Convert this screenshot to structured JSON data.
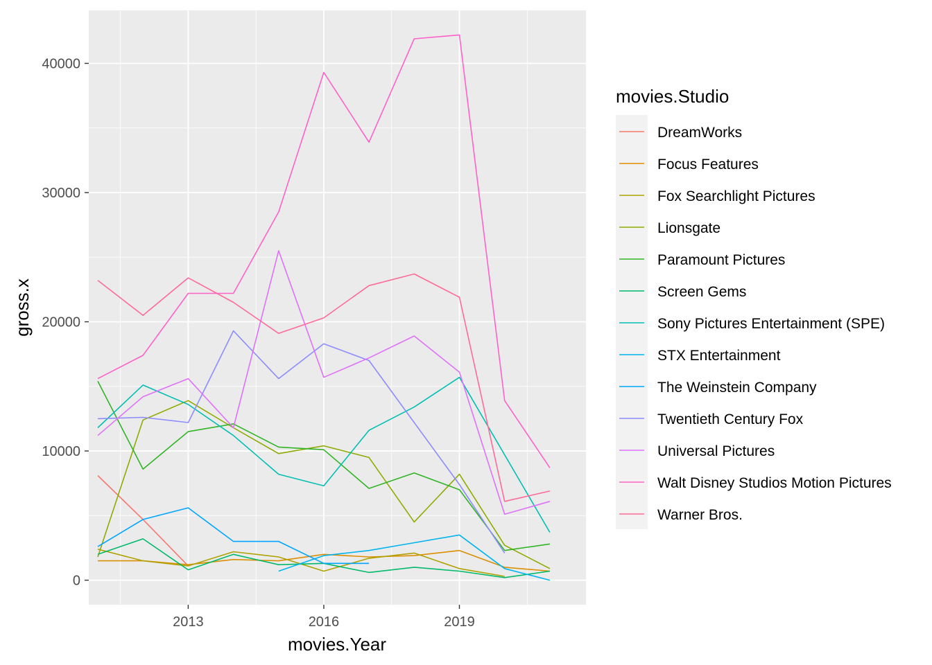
{
  "chart_data": {
    "type": "line",
    "xlabel": "movies.Year",
    "ylabel": "gross.x",
    "xlim": [
      2010.8,
      2021.8
    ],
    "ylim": [
      -1900,
      44100
    ],
    "x_ticks": [
      2013,
      2016,
      2019
    ],
    "x_tick_labels": [
      "2013",
      "2016",
      "2019"
    ],
    "y_ticks": [
      0,
      10000,
      20000,
      30000,
      40000
    ],
    "y_tick_labels": [
      "0",
      "10000",
      "20000",
      "30000",
      "40000"
    ],
    "grid": true,
    "legend": {
      "title": "movies.Studio",
      "position": "right"
    },
    "series": [
      {
        "name": "DreamWorks",
        "color": "#F8766D",
        "points": [
          [
            2011,
            8100
          ],
          [
            2012,
            4700
          ],
          [
            2013,
            1100
          ]
        ]
      },
      {
        "name": "Focus Features",
        "color": "#DB8E00",
        "points": [
          [
            2011,
            1500
          ],
          [
            2012,
            1500
          ],
          [
            2013,
            1200
          ],
          [
            2014,
            1600
          ],
          [
            2015,
            1500
          ],
          [
            2016,
            2000
          ],
          [
            2017,
            1800
          ],
          [
            2018,
            1900
          ],
          [
            2019,
            2300
          ],
          [
            2020,
            1000
          ],
          [
            2021,
            700
          ]
        ]
      },
      {
        "name": "Fox Searchlight Pictures",
        "color": "#AEA200",
        "points": [
          [
            2011,
            2400
          ],
          [
            2012,
            1500
          ],
          [
            2013,
            1100
          ],
          [
            2014,
            2200
          ],
          [
            2015,
            1800
          ],
          [
            2016,
            700
          ],
          [
            2017,
            1700
          ],
          [
            2018,
            2100
          ],
          [
            2019,
            900
          ],
          [
            2020,
            300
          ]
        ]
      },
      {
        "name": "Lionsgate",
        "color": "#8FAA00",
        "points": [
          [
            2011,
            1800
          ],
          [
            2012,
            12400
          ],
          [
            2013,
            13900
          ],
          [
            2014,
            11800
          ],
          [
            2015,
            9800
          ],
          [
            2016,
            10400
          ],
          [
            2017,
            9500
          ],
          [
            2018,
            4500
          ],
          [
            2019,
            8200
          ],
          [
            2020,
            2700
          ],
          [
            2021,
            900
          ]
        ]
      },
      {
        "name": "Paramount Pictures",
        "color": "#31B425",
        "points": [
          [
            2011,
            15400
          ],
          [
            2012,
            8600
          ],
          [
            2013,
            11500
          ],
          [
            2014,
            12100
          ],
          [
            2015,
            10300
          ],
          [
            2016,
            10100
          ],
          [
            2017,
            7100
          ],
          [
            2018,
            8300
          ],
          [
            2019,
            7000
          ],
          [
            2020,
            2300
          ],
          [
            2021,
            2800
          ]
        ]
      },
      {
        "name": "Screen Gems",
        "color": "#00BA6B",
        "points": [
          [
            2011,
            2000
          ],
          [
            2012,
            3200
          ],
          [
            2013,
            800
          ],
          [
            2014,
            2000
          ],
          [
            2015,
            1200
          ],
          [
            2016,
            1300
          ],
          [
            2017,
            600
          ],
          [
            2018,
            1000
          ],
          [
            2019,
            700
          ],
          [
            2020,
            200
          ],
          [
            2021,
            700
          ]
        ]
      },
      {
        "name": "Sony Pictures Entertainment (SPE)",
        "color": "#00BFB2",
        "points": [
          [
            2011,
            11800
          ],
          [
            2012,
            15100
          ],
          [
            2013,
            13600
          ],
          [
            2014,
            11200
          ],
          [
            2015,
            8200
          ],
          [
            2016,
            7300
          ],
          [
            2017,
            11600
          ],
          [
            2018,
            13400
          ],
          [
            2019,
            15700
          ],
          [
            2021,
            3700
          ]
        ]
      },
      {
        "name": "STX Entertainment",
        "color": "#00B4EF",
        "points": [
          [
            2015,
            700
          ],
          [
            2016,
            1900
          ],
          [
            2017,
            2300
          ],
          [
            2018,
            2900
          ],
          [
            2019,
            3500
          ],
          [
            2020,
            900
          ],
          [
            2021,
            0
          ]
        ]
      },
      {
        "name": "The Weinstein Company",
        "color": "#00A5FF",
        "points": [
          [
            2011,
            2600
          ],
          [
            2012,
            4700
          ],
          [
            2013,
            5600
          ],
          [
            2014,
            3000
          ],
          [
            2015,
            3000
          ],
          [
            2016,
            1300
          ],
          [
            2017,
            1300
          ]
        ]
      },
      {
        "name": "Twentieth Century Fox",
        "color": "#8C8CFF",
        "points": [
          [
            2011,
            12500
          ],
          [
            2012,
            12600
          ],
          [
            2013,
            12200
          ],
          [
            2014,
            19300
          ],
          [
            2015,
            15600
          ],
          [
            2016,
            18300
          ],
          [
            2017,
            17000
          ],
          [
            2019,
            7400
          ],
          [
            2020,
            2100
          ]
        ]
      },
      {
        "name": "Universal Pictures",
        "color": "#DE71F9",
        "points": [
          [
            2011,
            11200
          ],
          [
            2012,
            14200
          ],
          [
            2013,
            15600
          ],
          [
            2014,
            11800
          ],
          [
            2015,
            25500
          ],
          [
            2016,
            15700
          ],
          [
            2017,
            17200
          ],
          [
            2018,
            18900
          ],
          [
            2019,
            16100
          ],
          [
            2020,
            5100
          ],
          [
            2021,
            6100
          ]
        ]
      },
      {
        "name": "Walt Disney Studios Motion Pictures",
        "color": "#FF61C9",
        "points": [
          [
            2011,
            15600
          ],
          [
            2012,
            17400
          ],
          [
            2013,
            22200
          ],
          [
            2014,
            22200
          ],
          [
            2015,
            28500
          ],
          [
            2016,
            39300
          ],
          [
            2017,
            33900
          ],
          [
            2018,
            41900
          ],
          [
            2019,
            42200
          ],
          [
            2020,
            13900
          ],
          [
            2021,
            8700
          ]
        ]
      },
      {
        "name": "Warner Bros.",
        "color": "#FF6A98",
        "points": [
          [
            2011,
            23200
          ],
          [
            2012,
            20500
          ],
          [
            2013,
            23400
          ],
          [
            2014,
            21500
          ],
          [
            2015,
            19100
          ],
          [
            2016,
            20300
          ],
          [
            2017,
            22800
          ],
          [
            2018,
            23700
          ],
          [
            2019,
            21900
          ],
          [
            2020,
            6100
          ],
          [
            2021,
            6900
          ]
        ]
      }
    ]
  }
}
